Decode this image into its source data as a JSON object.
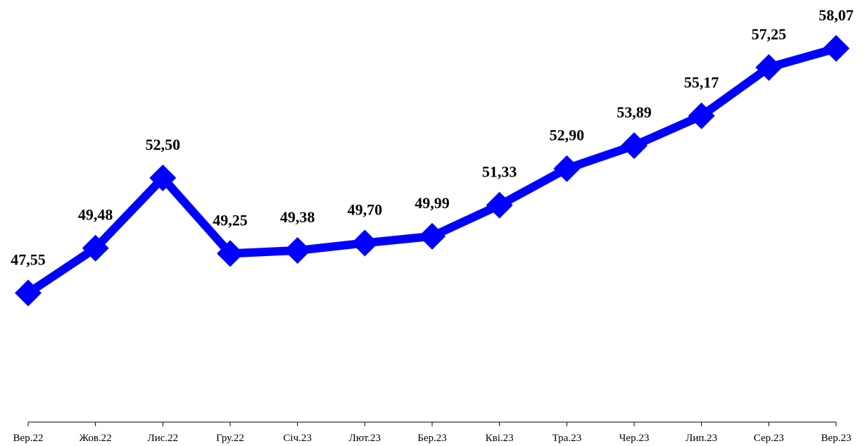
{
  "chart_data": {
    "type": "line",
    "categories": [
      "Вер.22",
      "Жов.22",
      "Лис.22",
      "Гру.22",
      "Січ.23",
      "Лют.23",
      "Бер.23",
      "Кві.23",
      "Тра.23",
      "Чер.23",
      "Лип.23",
      "Сер.23",
      "Вер.23"
    ],
    "values": [
      47.55,
      49.48,
      52.5,
      49.25,
      49.38,
      49.7,
      49.99,
      51.33,
      52.9,
      53.89,
      55.17,
      57.25,
      58.07
    ],
    "value_labels": [
      "47,55",
      "49,48",
      "52,50",
      "49,25",
      "49,38",
      "49,70",
      "49,99",
      "51,33",
      "52,90",
      "53,89",
      "55,17",
      "57,25",
      "58,07"
    ],
    "color": "#0000ff",
    "ylim": [
      42,
      60
    ]
  }
}
